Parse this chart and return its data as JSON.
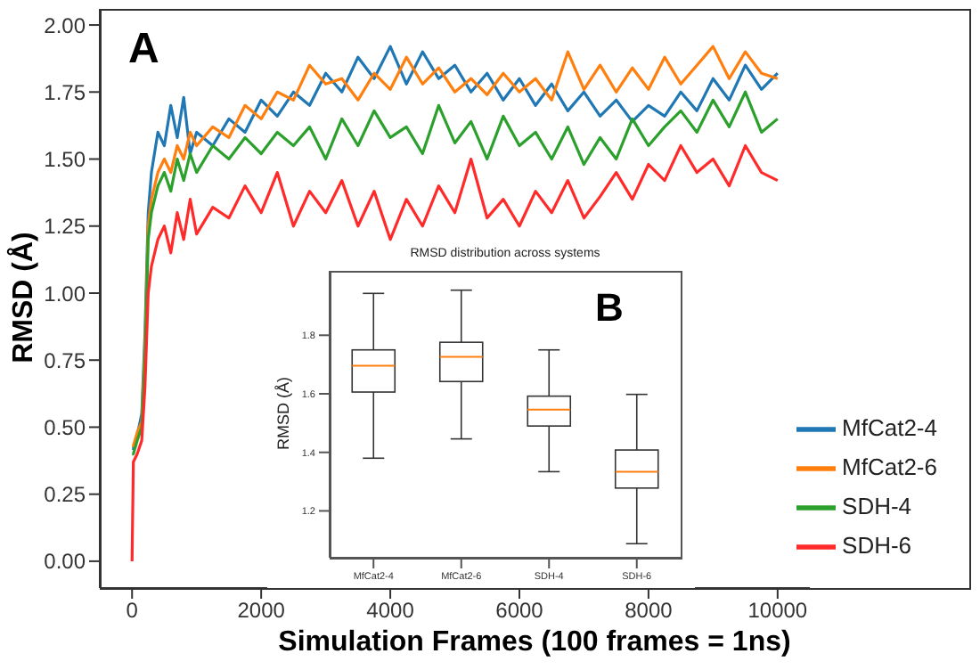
{
  "chart_data": [
    {
      "type": "line",
      "xlabel": "Simulation Frames (100 frames = 1ns)",
      "ylabel": "RMSD (Å)",
      "annotations": [
        "A"
      ],
      "x": [
        0,
        20,
        80,
        150,
        200,
        250,
        300,
        400,
        500,
        600,
        700,
        800,
        900,
        1000,
        1250,
        1500,
        1750,
        2000,
        2250,
        2500,
        2750,
        3000,
        3250,
        3500,
        3750,
        4000,
        4250,
        4500,
        4750,
        5000,
        5250,
        5500,
        5750,
        6000,
        6250,
        6500,
        6750,
        7000,
        7250,
        7500,
        7750,
        8000,
        8250,
        8500,
        8750,
        9000,
        9250,
        9500,
        9750,
        10000
      ],
      "series": [
        {
          "name": "MfCat2-4",
          "color": "#1f77b4",
          "values": [
            0.42,
            0.42,
            0.47,
            0.55,
            0.85,
            1.3,
            1.45,
            1.6,
            1.55,
            1.7,
            1.58,
            1.73,
            1.52,
            1.6,
            1.55,
            1.65,
            1.6,
            1.72,
            1.66,
            1.75,
            1.7,
            1.82,
            1.75,
            1.88,
            1.8,
            1.92,
            1.78,
            1.9,
            1.8,
            1.85,
            1.75,
            1.82,
            1.72,
            1.8,
            1.7,
            1.78,
            1.68,
            1.75,
            1.66,
            1.72,
            1.64,
            1.7,
            1.66,
            1.75,
            1.68,
            1.8,
            1.72,
            1.85,
            1.76,
            1.82
          ]
        },
        {
          "name": "MfCat2-6",
          "color": "#ff7f0e",
          "values": [
            0.43,
            0.43,
            0.48,
            0.52,
            0.8,
            1.25,
            1.35,
            1.45,
            1.5,
            1.45,
            1.55,
            1.5,
            1.6,
            1.55,
            1.62,
            1.58,
            1.7,
            1.65,
            1.75,
            1.72,
            1.85,
            1.78,
            1.8,
            1.72,
            1.82,
            1.76,
            1.88,
            1.78,
            1.84,
            1.75,
            1.8,
            1.74,
            1.82,
            1.75,
            1.8,
            1.72,
            1.9,
            1.76,
            1.85,
            1.75,
            1.84,
            1.76,
            1.88,
            1.78,
            1.85,
            1.92,
            1.8,
            1.9,
            1.82,
            1.8
          ]
        },
        {
          "name": "SDH-4",
          "color": "#2ca02c",
          "values": [
            0.4,
            0.4,
            0.45,
            0.5,
            0.75,
            1.2,
            1.3,
            1.4,
            1.45,
            1.38,
            1.5,
            1.42,
            1.52,
            1.45,
            1.55,
            1.5,
            1.58,
            1.52,
            1.6,
            1.55,
            1.62,
            1.5,
            1.65,
            1.55,
            1.68,
            1.58,
            1.62,
            1.52,
            1.7,
            1.56,
            1.64,
            1.5,
            1.66,
            1.55,
            1.6,
            1.5,
            1.62,
            1.48,
            1.58,
            1.5,
            1.65,
            1.55,
            1.62,
            1.68,
            1.6,
            1.72,
            1.62,
            1.75,
            1.6,
            1.65
          ]
        },
        {
          "name": "SDH-6",
          "color": "#ff2a2a",
          "values": [
            0.0,
            0.37,
            0.4,
            0.45,
            0.65,
            1.0,
            1.1,
            1.2,
            1.25,
            1.15,
            1.3,
            1.2,
            1.35,
            1.22,
            1.32,
            1.28,
            1.4,
            1.3,
            1.45,
            1.25,
            1.38,
            1.3,
            1.42,
            1.25,
            1.38,
            1.2,
            1.35,
            1.25,
            1.4,
            1.3,
            1.5,
            1.28,
            1.35,
            1.25,
            1.38,
            1.3,
            1.42,
            1.28,
            1.36,
            1.45,
            1.35,
            1.48,
            1.42,
            1.55,
            1.45,
            1.5,
            1.4,
            1.55,
            1.45,
            1.42
          ]
        }
      ],
      "xlim": [
        -500,
        10500
      ],
      "xticks": [
        0,
        2000,
        4000,
        6000,
        8000,
        10000
      ],
      "ylim": [
        -0.1,
        2.06
      ],
      "yticks": [
        {
          "value": 0,
          "label": "0.00"
        },
        {
          "value": 0.25,
          "label": "0.25"
        },
        {
          "value": 0.5,
          "label": "0.50"
        },
        {
          "value": 0.75,
          "label": "0.75"
        },
        {
          "value": 1,
          "label": "1.00"
        },
        {
          "value": 1.25,
          "label": "1.25"
        },
        {
          "value": 1.5,
          "label": "1.50"
        },
        {
          "value": 1.75,
          "label": "1.75"
        },
        {
          "value": 2,
          "label": "2.00"
        }
      ],
      "legend": "bottom right",
      "marker": "none",
      "line_style": "solid"
    },
    {
      "type": "box",
      "title": "RMSD distribution across systems",
      "ylabel": "RMSD (Å)",
      "annotations": [
        "B"
      ],
      "categories": [
        "MfCat2-4",
        "MfCat2-6",
        "SDH-4",
        "SDH-6"
      ],
      "boxes": [
        {
          "low": 1.38,
          "q1": 1.606,
          "median": 1.696,
          "q3": 1.75,
          "high": 1.943
        },
        {
          "low": 1.446,
          "q1": 1.642,
          "median": 1.726,
          "q3": 1.776,
          "high": 1.954
        },
        {
          "low": 1.334,
          "q1": 1.49,
          "median": 1.546,
          "q3": 1.592,
          "high": 1.75
        },
        {
          "low": 1.088,
          "q1": 1.278,
          "median": 1.334,
          "q3": 1.408,
          "high": 1.598
        }
      ],
      "ylim": [
        1.04,
        2.02
      ],
      "yticks": [
        1.2,
        1.4,
        1.6,
        1.8
      ]
    }
  ]
}
